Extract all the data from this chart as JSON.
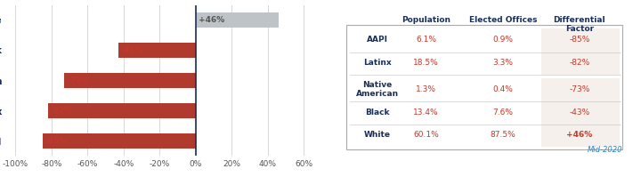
{
  "categories": [
    "AAPI",
    "Latinx",
    "Native American",
    "Black",
    "White"
  ],
  "values": [
    -85,
    -82,
    -73,
    -43,
    46
  ],
  "bar_colors": [
    "#b03a2e",
    "#b03a2e",
    "#b03a2e",
    "#b03a2e",
    "#bdc3c7"
  ],
  "bar_labels": [
    "-85%",
    "-82%",
    "-73%",
    "-43%",
    "+46%"
  ],
  "xlim": [
    -105,
    65
  ],
  "xticks": [
    -100,
    -80,
    -60,
    -40,
    -20,
    0,
    20,
    40,
    60
  ],
  "xtick_labels": [
    "-100%",
    "-80%",
    "-60%",
    "-40%",
    "-20%",
    "0%",
    "20%",
    "40%",
    "60%"
  ],
  "ytick_color": "#1a2f5a",
  "background_color": "#ffffff",
  "table_groups": [
    "AAPI",
    "Latinx",
    "Native\nAmerican",
    "Black",
    "White"
  ],
  "table_population": [
    "6.1%",
    "18.5%",
    "1.3%",
    "13.4%",
    "60.1%"
  ],
  "table_elected": [
    "0.9%",
    "3.3%",
    "0.4%",
    "7.6%",
    "87.5%"
  ],
  "table_differential": [
    "-85%",
    "-82%",
    "-73%",
    "-43%",
    "+46%"
  ],
  "table_diff_bold": [
    false,
    false,
    false,
    false,
    true
  ],
  "col_headers": [
    "Population",
    "Elected Offices",
    "Differential\nFactor"
  ],
  "col_header_color": "#1a2f5a",
  "data_color": "#c0392b",
  "mid2020_color": "#2e86c1",
  "grid_color": "#d5d8dc",
  "zero_line_color": "#1a2f5a",
  "bar_height": 0.5,
  "separator_color": "#cccccc",
  "table_border_color": "#aaaaaa",
  "diff_bg_color": "#f5f0eb",
  "label_color": "#c0392b",
  "white_label_color": "#555555"
}
